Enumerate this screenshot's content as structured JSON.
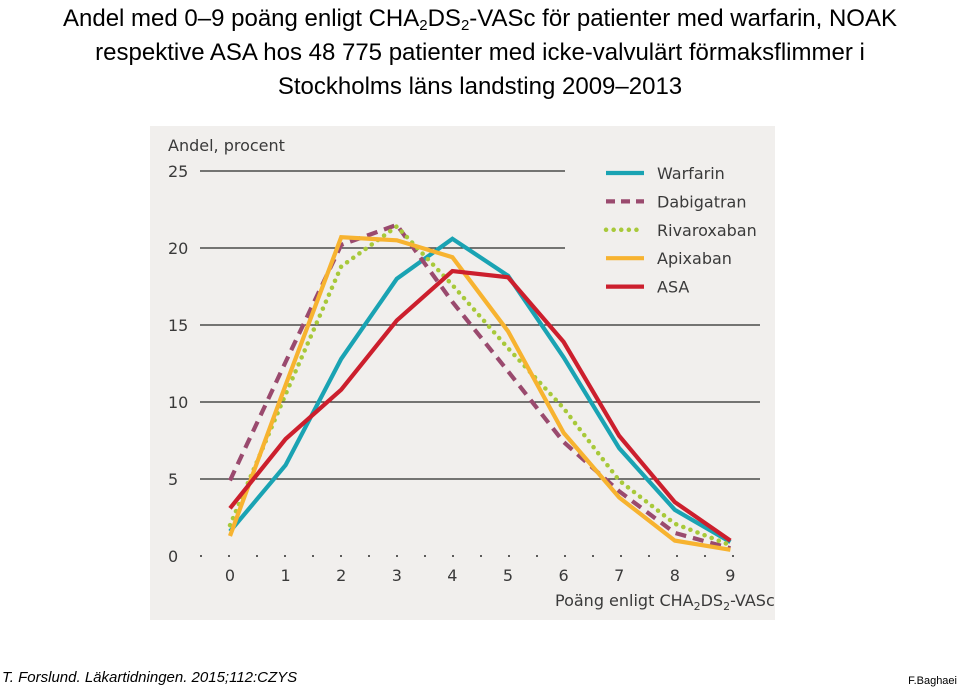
{
  "title": {
    "line1_prefix": "Andel med 0–9 poäng enligt CHA",
    "line1_sub1": "2",
    "line1_mid": "DS",
    "line1_sub2": "2",
    "line1_suffix": "-VASc för patienter med warfarin, NOAK",
    "line2": "respektive ASA hos 48 775 patienter med icke-valvulärt förmaksflimmer i",
    "line3": "Stockholms läns landsting 2009–2013"
  },
  "chart_data": {
    "type": "line",
    "ylabel": "Andel, procent",
    "xlabel_prefix": "Poäng enligt CHA",
    "xlabel_sub1": "2",
    "xlabel_mid": "DS",
    "xlabel_sub2": "2",
    "xlabel_suffix": "-VASc",
    "x": [
      0,
      1,
      2,
      3,
      4,
      5,
      6,
      7,
      8,
      9
    ],
    "x_tick_labels": [
      "0",
      "1",
      "2",
      "3",
      "4",
      "5",
      "6",
      "7",
      "8",
      "9"
    ],
    "ylim": [
      0,
      25
    ],
    "y_ticks": [
      0,
      5,
      10,
      15,
      20,
      25
    ],
    "y_tick_labels": [
      "0",
      "5",
      "10",
      "15",
      "20",
      "25"
    ],
    "grid": true,
    "legend_position": "top-right",
    "series": [
      {
        "name": "Warfarin",
        "color": "#1aa3b3",
        "style": "solid",
        "values": [
          1.6,
          5.9,
          12.8,
          18.0,
          20.6,
          18.2,
          12.9,
          7.0,
          3.0,
          0.9
        ]
      },
      {
        "name": "Dabigatran",
        "color": "#9a4a6e",
        "style": "dashed",
        "values": [
          4.9,
          12.6,
          20.2,
          21.5,
          16.5,
          12.0,
          7.4,
          4.2,
          1.5,
          0.5
        ]
      },
      {
        "name": "Rivaroxaban",
        "color": "#a8c93a",
        "style": "dotted",
        "values": [
          2.0,
          10.5,
          18.8,
          21.4,
          17.6,
          13.5,
          9.6,
          4.9,
          2.1,
          0.7
        ]
      },
      {
        "name": "Apixaban",
        "color": "#f7b330",
        "style": "solid",
        "values": [
          1.3,
          11.1,
          20.7,
          20.5,
          19.4,
          14.6,
          8.0,
          3.8,
          1.0,
          0.4
        ]
      },
      {
        "name": "ASA",
        "color": "#cc1f2d",
        "style": "solid",
        "values": [
          3.1,
          7.6,
          10.8,
          15.3,
          18.5,
          18.1,
          13.9,
          7.8,
          3.5,
          1.0
        ]
      }
    ]
  },
  "source": "T. Forslund. Läkartidningen. 2015;112:CZYS",
  "author": "F.Baghaei"
}
